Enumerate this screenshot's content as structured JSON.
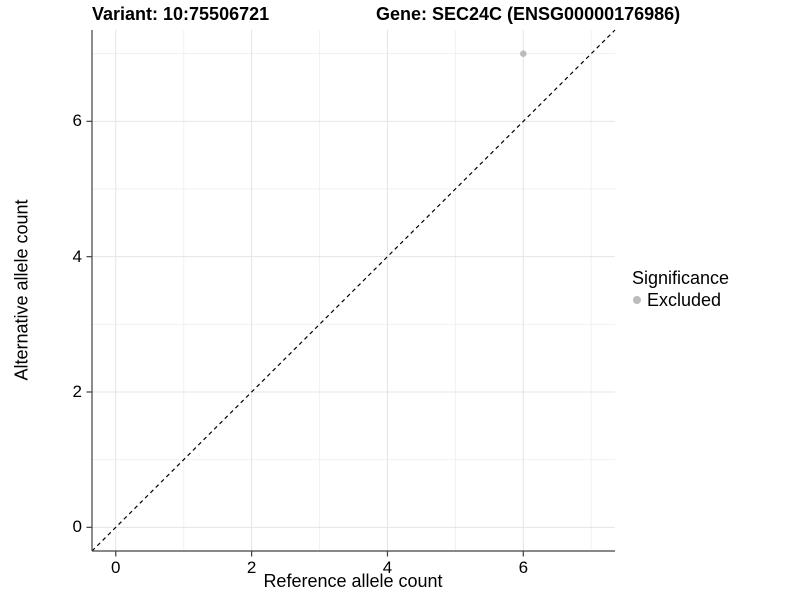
{
  "colors": {
    "point": "#bcbcbc",
    "grid_major": "#e4e4e4",
    "grid_minor": "#f1f1f1",
    "axis_line": "#404040",
    "tick_mark": "#404040",
    "identity_line": "#000000"
  },
  "legend": {
    "title": "Significance",
    "items": [
      {
        "label": "Excluded",
        "color": "#bcbcbc"
      }
    ]
  },
  "chart_data": {
    "type": "scatter",
    "title_left": "Variant: 10:75506721",
    "title_right": "Gene: SEC24C (ENSG00000176986)",
    "xlabel": "Reference allele count",
    "ylabel": "Alternative allele count",
    "xlim": [
      -0.35,
      7.35
    ],
    "ylim": [
      -0.35,
      7.35
    ],
    "x_major_ticks": [
      0,
      2,
      4,
      6
    ],
    "y_major_ticks": [
      0,
      2,
      4,
      6
    ],
    "x_minor_ticks": [
      1,
      3,
      5,
      7
    ],
    "y_minor_ticks": [
      1,
      3,
      5,
      7
    ],
    "grid": true,
    "legend_position": "right",
    "legend_title": "Significance",
    "reference_line": {
      "type": "identity",
      "slope": 1,
      "intercept": 0,
      "style": "dashed",
      "color": "#000000"
    },
    "series": [
      {
        "name": "Excluded",
        "color": "#bcbcbc",
        "points": [
          {
            "x": 6,
            "y": 7
          }
        ]
      }
    ]
  }
}
